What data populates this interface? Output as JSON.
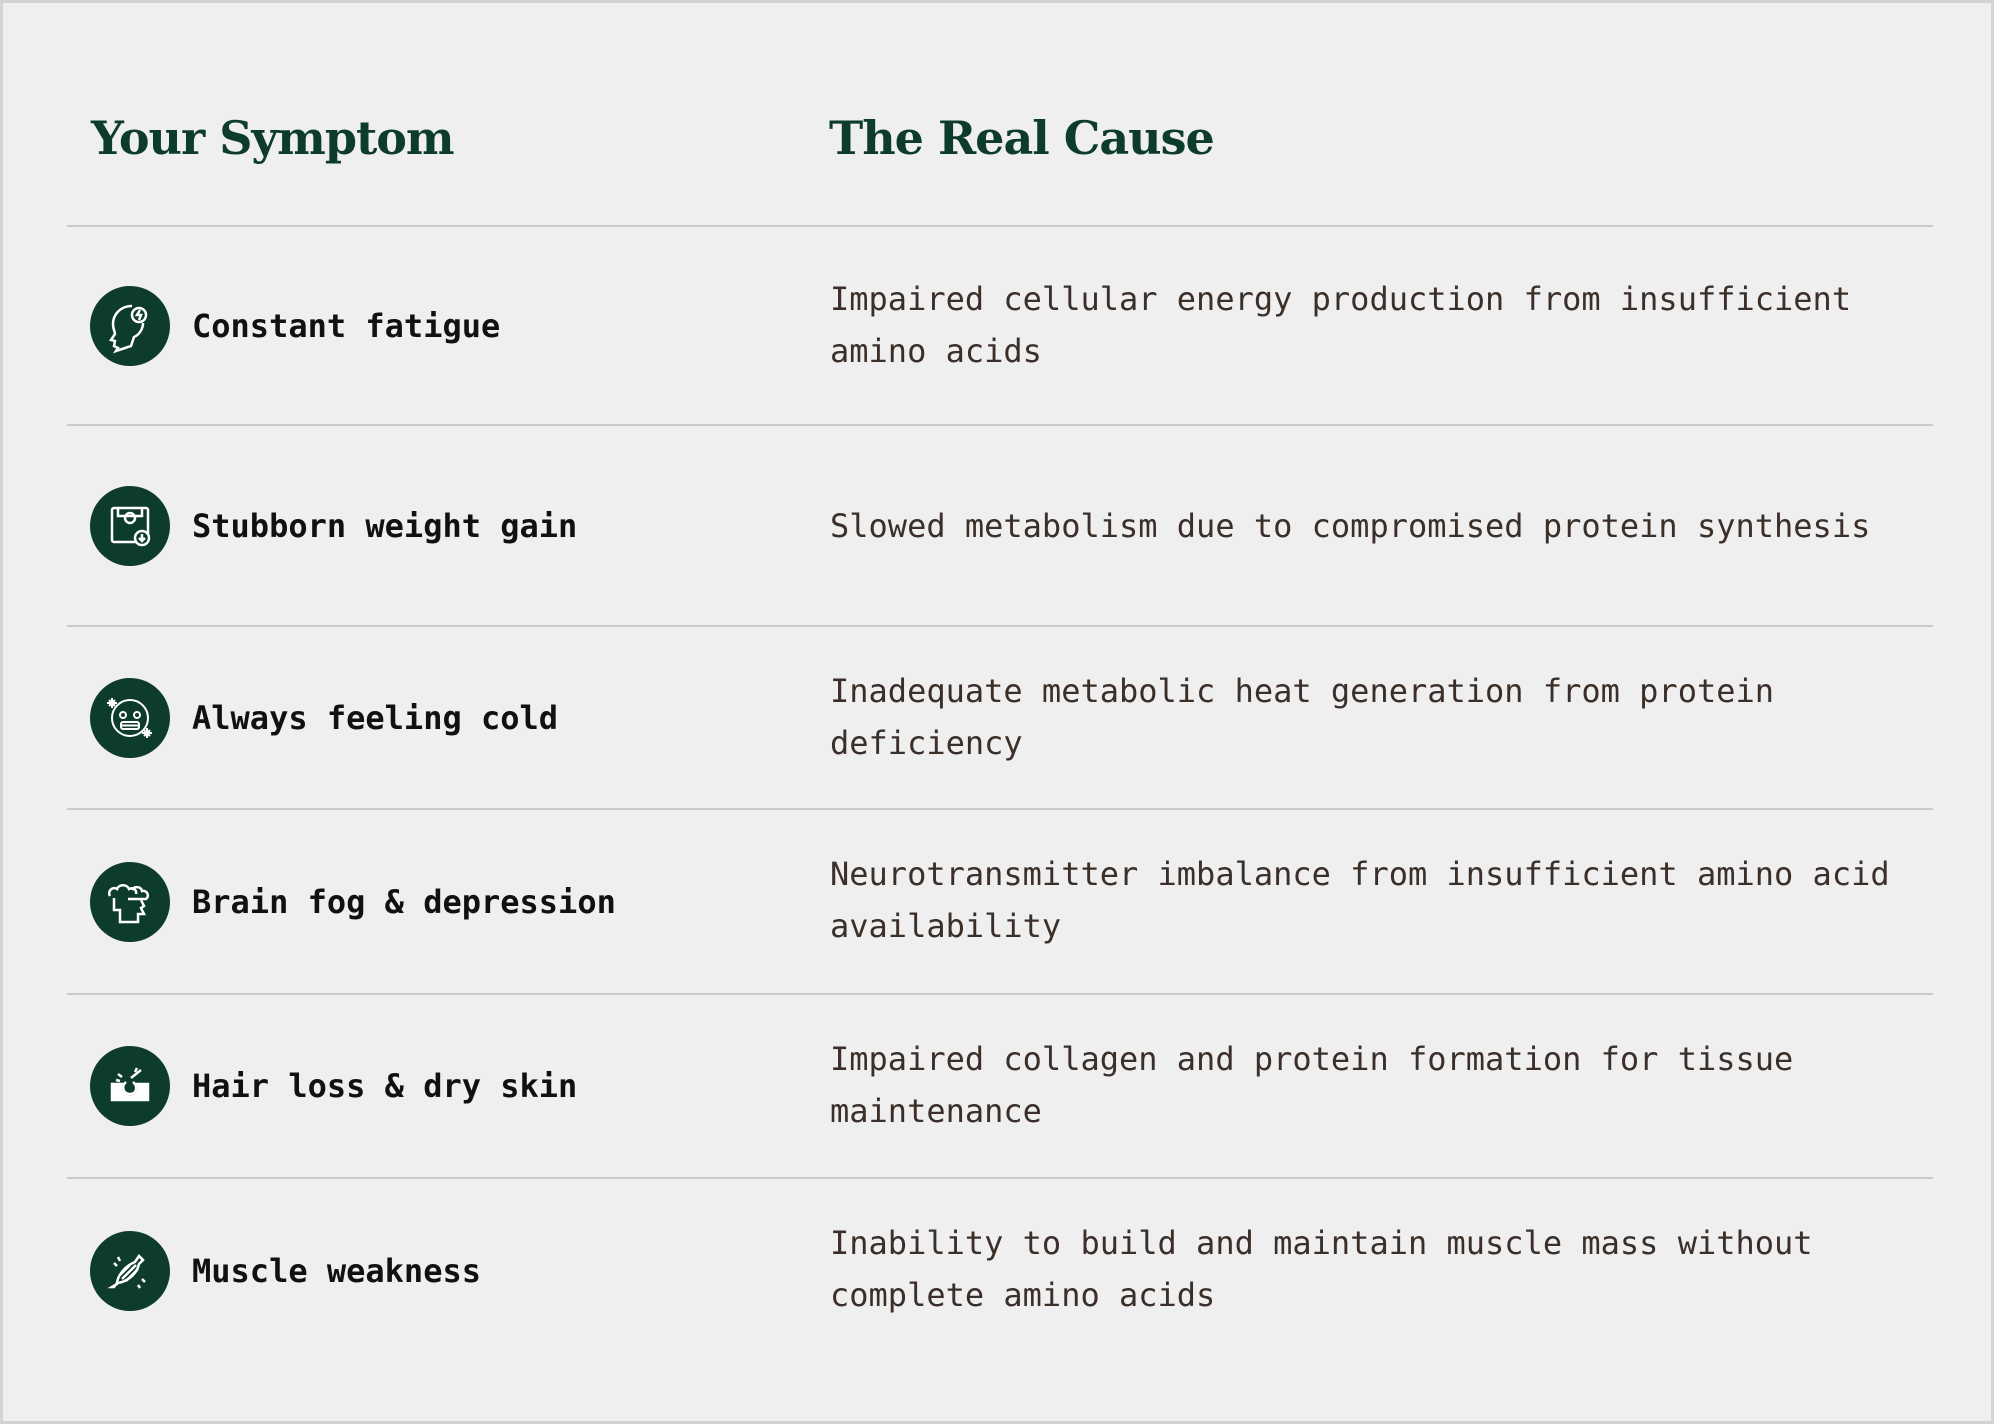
{
  "header": {
    "symptom": "Your Symptom",
    "cause": "The Real Cause"
  },
  "accent_color": "#0d3b2e",
  "rows": [
    {
      "icon": "head-lightning-cloud-icon",
      "symptom": "Constant fatigue",
      "cause": "Impaired cellular energy production from insufficient amino acids"
    },
    {
      "icon": "scale-weight-icon",
      "symptom": "Stubborn weight gain",
      "cause": "Slowed metabolism due to compromised protein synthesis"
    },
    {
      "icon": "cold-face-icon",
      "symptom": "Always feeling cold",
      "cause": "Inadequate metabolic heat generation from protein deficiency"
    },
    {
      "icon": "head-cloud-icon",
      "symptom": "Brain fog & depression",
      "cause": "Neurotransmitter imbalance from insufficient amino acid availability"
    },
    {
      "icon": "hair-follicle-icon",
      "symptom": "Hair loss & dry skin",
      "cause": "Impaired collagen and protein formation for tissue maintenance"
    },
    {
      "icon": "muscle-icon",
      "symptom": "Muscle weakness",
      "cause": "Inability to build and maintain muscle mass without complete amino acids"
    }
  ]
}
